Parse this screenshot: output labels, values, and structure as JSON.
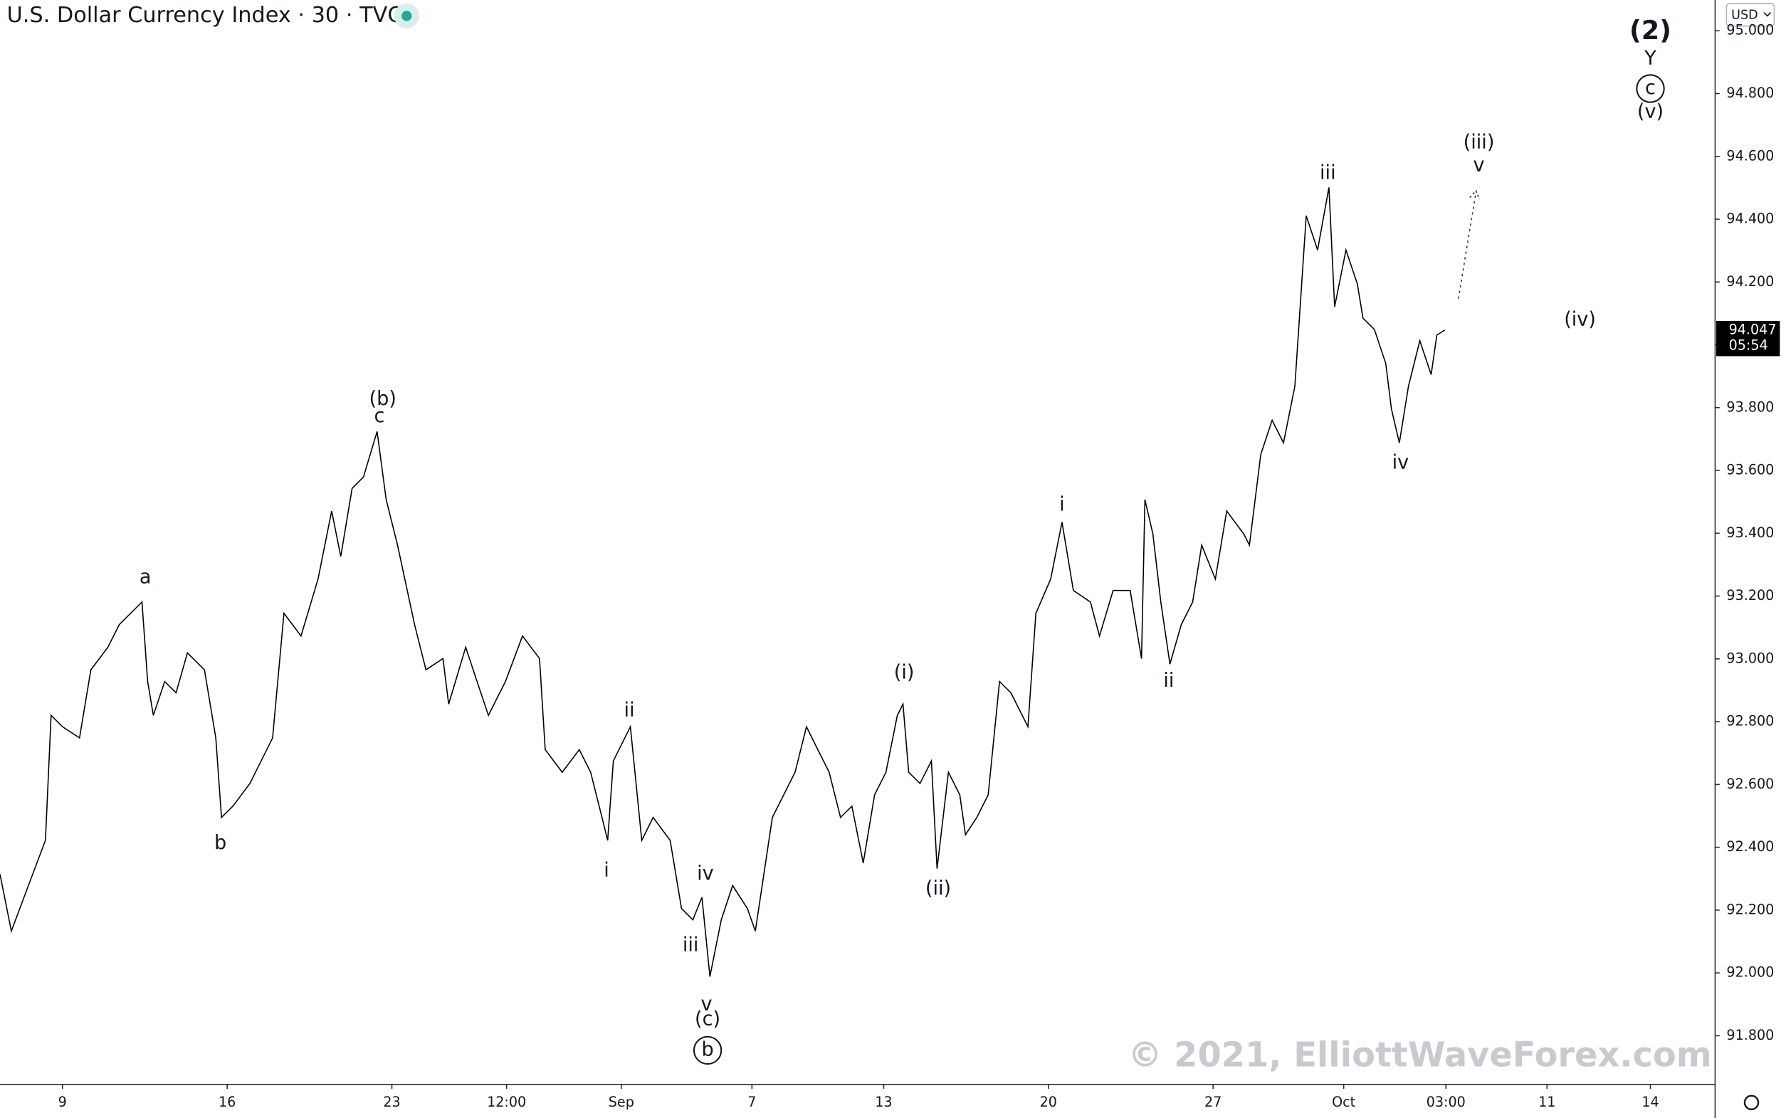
{
  "chart_data": {
    "type": "line",
    "title": "U.S. Dollar Currency Index · 30 · TVC",
    "currency": "USD",
    "watermark": "© 2021, ElliottWaveForex.com",
    "x": [
      0,
      10,
      25,
      40,
      45,
      55,
      70,
      80,
      95,
      105,
      125,
      130,
      135,
      145,
      155,
      165,
      180,
      190,
      195,
      205,
      220,
      240,
      250,
      265,
      280,
      292,
      300,
      310,
      320,
      332,
      340,
      350,
      365,
      375,
      390,
      395,
      410,
      420,
      430,
      445,
      460,
      475,
      480,
      495,
      510,
      520,
      530,
      535,
      540,
      555,
      565,
      575,
      590,
      600,
      610,
      618,
      625,
      635,
      645,
      658,
      665,
      680,
      690,
      700,
      710,
      720,
      730,
      740,
      750,
      760,
      770,
      780,
      790,
      795,
      800,
      810,
      820,
      825,
      835,
      845,
      850,
      860,
      870,
      880,
      890,
      905,
      912,
      925,
      935,
      945,
      960,
      968,
      980,
      995,
      1005,
      1008,
      1015,
      1022,
      1030,
      1040,
      1050,
      1058,
      1070,
      1080,
      1095,
      1100,
      1110,
      1120,
      1130,
      1140,
      1150,
      1160,
      1170,
      1175,
      1185,
      1195,
      1200,
      1210,
      1220,
      1225,
      1232,
      1240,
      1250,
      1260,
      1265,
      1272
    ],
    "values": [
      92.314,
      92.133,
      92.278,
      92.422,
      92.82,
      92.784,
      92.748,
      92.965,
      93.037,
      93.109,
      93.181,
      92.928,
      92.82,
      92.928,
      92.892,
      93.019,
      92.965,
      92.748,
      92.495,
      92.531,
      92.603,
      92.748,
      93.145,
      93.073,
      93.254,
      93.471,
      93.326,
      93.543,
      93.579,
      93.724,
      93.507,
      93.362,
      93.109,
      92.965,
      93.001,
      92.856,
      93.037,
      92.928,
      92.82,
      92.928,
      93.073,
      93.001,
      92.711,
      92.639,
      92.711,
      92.639,
      92.495,
      92.422,
      92.675,
      92.784,
      92.422,
      92.495,
      92.422,
      92.205,
      92.169,
      92.241,
      91.988,
      92.169,
      92.278,
      92.205,
      92.133,
      92.495,
      92.567,
      92.639,
      92.784,
      92.711,
      92.639,
      92.495,
      92.531,
      92.35,
      92.567,
      92.639,
      92.82,
      92.856,
      92.639,
      92.603,
      92.675,
      92.332,
      92.639,
      92.567,
      92.44,
      92.495,
      92.567,
      92.928,
      92.892,
      92.784,
      93.145,
      93.254,
      93.435,
      93.218,
      93.181,
      93.073,
      93.218,
      93.218,
      93.001,
      93.507,
      93.398,
      93.181,
      92.983,
      93.109,
      93.181,
      93.362,
      93.254,
      93.471,
      93.398,
      93.362,
      93.651,
      93.76,
      93.688,
      93.868,
      94.411,
      94.302,
      94.501,
      94.121,
      94.302,
      94.194,
      94.085,
      94.049,
      93.941,
      93.796,
      93.688,
      93.868,
      94.013,
      93.905,
      94.031,
      94.047
    ],
    "color": "#000000",
    "xlim": [
      0,
      1510
    ],
    "ylim": [
      91.645,
      95.098
    ],
    "xticks": [
      {
        "value": 55,
        "label": "9"
      },
      {
        "value": 200,
        "label": "16"
      },
      {
        "value": 345,
        "label": "23"
      },
      {
        "value": 446,
        "label": "12:00"
      },
      {
        "value": 547,
        "label": "Sep"
      },
      {
        "value": 662,
        "label": "7"
      },
      {
        "value": 778,
        "label": "13"
      },
      {
        "value": 923,
        "label": "20"
      },
      {
        "value": 1068,
        "label": "27"
      },
      {
        "value": 1183,
        "label": "Oct"
      },
      {
        "value": 1273,
        "label": "03:00"
      },
      {
        "value": 1362,
        "label": "11"
      },
      {
        "value": 1453,
        "label": "14"
      }
    ],
    "yticks": [
      {
        "value": 91.8,
        "label": "91.800"
      },
      {
        "value": 92,
        "label": "92.000"
      },
      {
        "value": 92.2,
        "label": "92.200"
      },
      {
        "value": 92.4,
        "label": "92.400"
      },
      {
        "value": 92.6,
        "label": "92.600"
      },
      {
        "value": 92.8,
        "label": "92.800"
      },
      {
        "value": 93,
        "label": "93.000"
      },
      {
        "value": 93.2,
        "label": "93.200"
      },
      {
        "value": 93.4,
        "label": "93.400"
      },
      {
        "value": 93.6,
        "label": "93.600"
      },
      {
        "value": 93.8,
        "label": "93.800"
      },
      {
        "value": 94,
        "label": "94.000"
      },
      {
        "value": 94.2,
        "label": "94.200"
      },
      {
        "value": 94.4,
        "label": "94.400"
      },
      {
        "value": 94.6,
        "label": "94.600"
      },
      {
        "value": 94.8,
        "label": "94.800"
      },
      {
        "value": 95,
        "label": "95.000"
      }
    ],
    "grid": false,
    "last_price": 94.047,
    "countdown": "05:54",
    "annotations": [
      "(2)",
      "Y",
      "c",
      "(v)",
      "(iii)",
      "v",
      "iii",
      "(iv)",
      "iv",
      "(b)",
      "c",
      "a",
      "b",
      "i",
      "ii",
      "(i)",
      "(ii)",
      "ii",
      "i",
      "iv",
      "iii",
      "v",
      "(c)",
      "b"
    ]
  }
}
